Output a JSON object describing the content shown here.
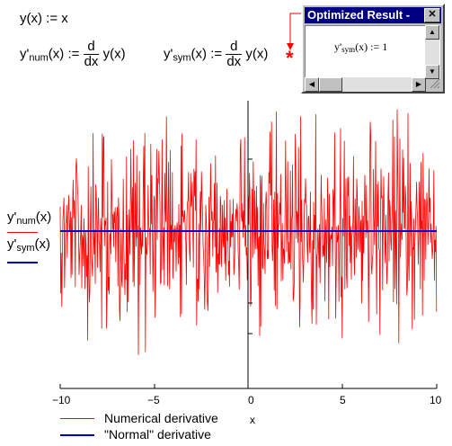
{
  "equations": {
    "y_def": {
      "lhs": "y(x)",
      "op": ":=",
      "rhs": "x"
    },
    "num_def": {
      "lhs_base": "y'",
      "lhs_sub": "num",
      "lhs_arg": "(x)",
      "op": ":=",
      "frac_num": "d",
      "frac_den": "dx",
      "rhs": "y(x)"
    },
    "sym_def": {
      "lhs_base": "y'",
      "lhs_sub": "sym",
      "lhs_arg": "(x)",
      "op": ":=",
      "frac_num": "d",
      "frac_den": "dx",
      "rhs": "y(x)",
      "marker": "*"
    }
  },
  "result_window": {
    "title": "Optimized Result - ",
    "close": "✕",
    "content_base": "y'",
    "content_sub": "sym",
    "content_rest": "(x) := 1"
  },
  "plot": {
    "y_labels": [
      {
        "base": "y'",
        "sub": "num",
        "arg": "(x)",
        "color": "#ff0000"
      },
      {
        "base": "y'",
        "sub": "sym",
        "arg": "(x)",
        "color": "#0000cc"
      }
    ],
    "x_ticks": [
      "−10",
      "−5",
      "0",
      "5",
      "10"
    ],
    "x_label": "x",
    "legend": [
      {
        "label": "Numerical derivative",
        "color": "#ff0000"
      },
      {
        "label": "\"Normal\" derivative",
        "color": "#0000cc"
      }
    ]
  },
  "chart_data": {
    "type": "line",
    "xlim": [
      -10,
      10
    ],
    "series": [
      {
        "name": "Numerical derivative",
        "color": "#ff0000",
        "pattern": "noise around 1",
        "x_range": [
          -10,
          10
        ]
      },
      {
        "name": "\"Normal\" derivative",
        "color": "#0000cc",
        "x": [
          -10,
          10
        ],
        "y": [
          1,
          1
        ]
      }
    ],
    "x_ticks": [
      -10,
      -5,
      0,
      5,
      10
    ],
    "xlabel": "x"
  }
}
